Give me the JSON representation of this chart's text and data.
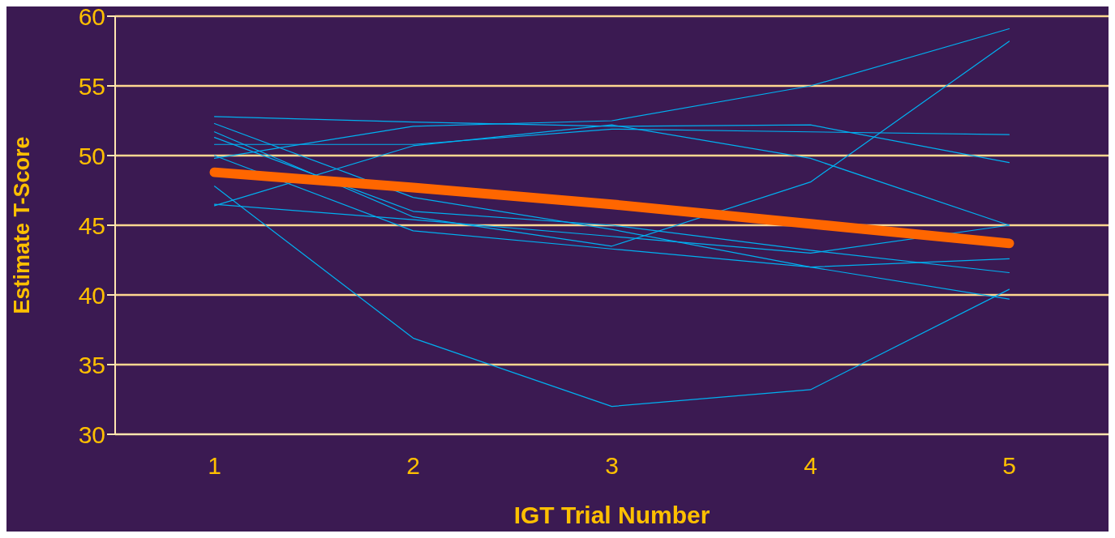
{
  "chart_data": {
    "type": "line",
    "xlabel": "IGT Trial Number",
    "ylabel": "Estimate T-Score",
    "categories": [
      "1",
      "2",
      "3",
      "4",
      "5"
    ],
    "ylim": [
      30,
      60
    ],
    "yticks": [
      30,
      35,
      40,
      45,
      50,
      55,
      60
    ],
    "grid": "y",
    "legend": false,
    "marker": "none",
    "line_style": "solid",
    "series": [
      {
        "color": "#00b0f0",
        "values": [
          52.8,
          52.4,
          52.1,
          52.2,
          49.5
        ]
      },
      {
        "color": "#00b0f0",
        "values": [
          50.8,
          50.8,
          51.9,
          51.7,
          51.5
        ]
      },
      {
        "color": "#00b0f0",
        "values": [
          49.8,
          52.1,
          52.5,
          55.0,
          59.1
        ]
      },
      {
        "color": "#00b0f0",
        "values": [
          46.4,
          50.7,
          52.2,
          49.8,
          45.0
        ]
      },
      {
        "color": "#00b0f0",
        "values": [
          52.3,
          47.0,
          44.7,
          42.0,
          39.7
        ]
      },
      {
        "color": "#00b0f0",
        "values": [
          51.7,
          45.6,
          43.5,
          48.1,
          58.2
        ]
      },
      {
        "color": "#00b0f0",
        "values": [
          51.3,
          46.0,
          45.0,
          43.2,
          41.6
        ]
      },
      {
        "color": "#00b0f0",
        "values": [
          46.5,
          45.4,
          44.2,
          43.0,
          45.0
        ]
      },
      {
        "color": "#00b0f0",
        "values": [
          50.0,
          44.6,
          43.3,
          42.0,
          42.6
        ]
      },
      {
        "color": "#00b0f0",
        "values": [
          47.8,
          36.9,
          32.0,
          33.2,
          40.4
        ]
      },
      {
        "color": "#ff6600",
        "values": [
          48.8,
          47.7,
          46.5,
          45.1,
          43.7
        ]
      }
    ]
  }
}
